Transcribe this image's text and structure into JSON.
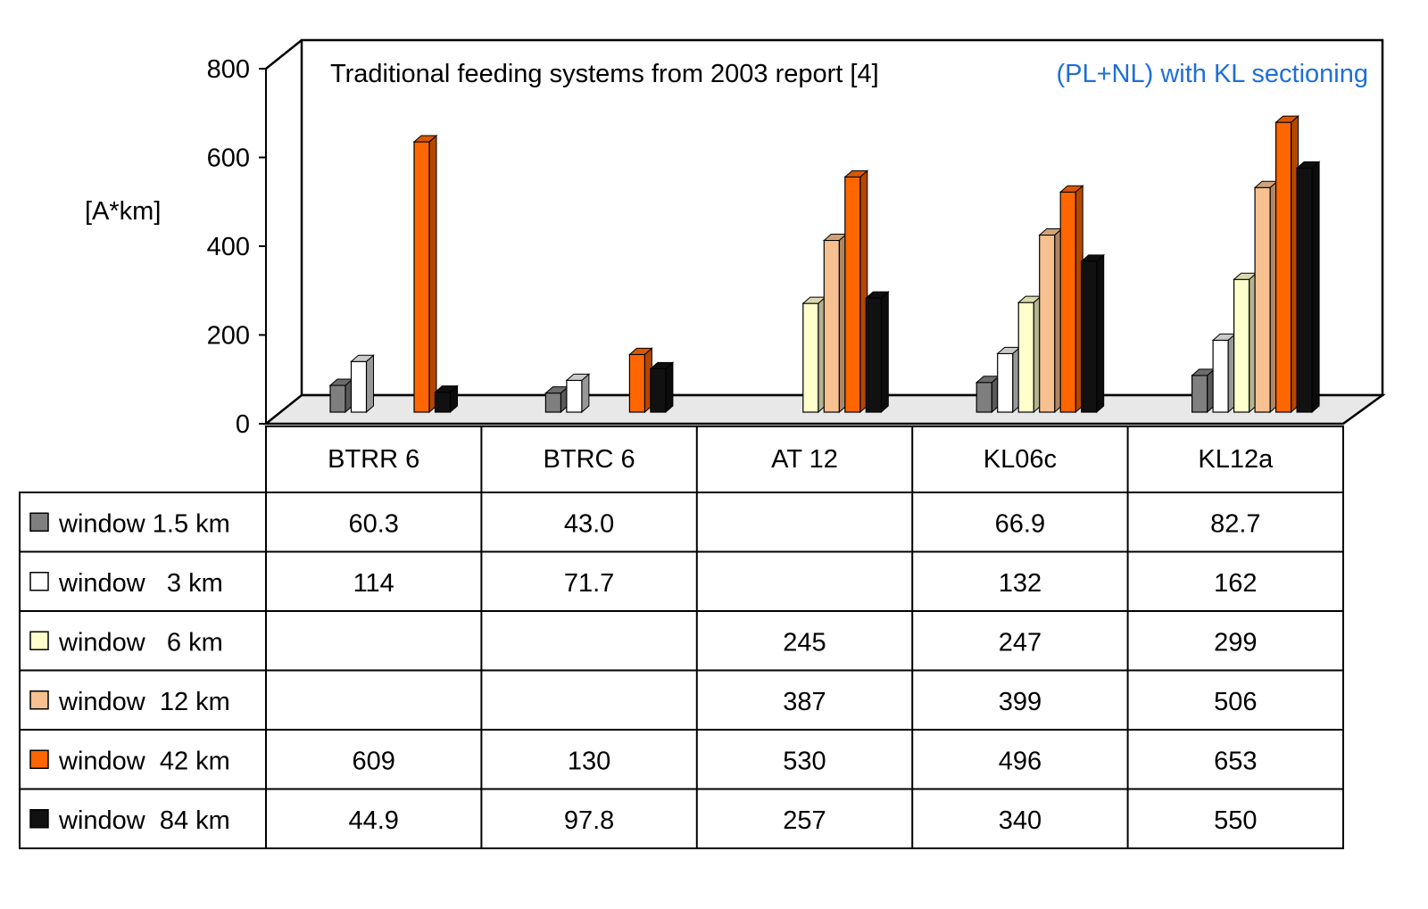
{
  "chart_data": {
    "type": "bar",
    "title": "Traditional feeding systems  from  2003 report [4]",
    "subtitle": "(PL+NL) with KL  sectioning",
    "ylabel": "[A*km]",
    "xlabel": "",
    "ylim": [
      0,
      800
    ],
    "yticks": [
      "0",
      "200",
      "400",
      "600",
      "800"
    ],
    "grid": false,
    "legend": "data-table-left",
    "categories": [
      "BTRR 6",
      "BTRC 6",
      "AT 12",
      "KL06c",
      "KL12a"
    ],
    "series": [
      {
        "name": "window 1.5 km",
        "values": [
          60.3,
          43.0,
          null,
          66.9,
          82.7
        ],
        "labels": [
          "60.3",
          "43.0",
          "",
          "66.9",
          "82.7"
        ]
      },
      {
        "name": "window   3 km",
        "values": [
          114,
          71.7,
          null,
          132,
          162
        ],
        "labels": [
          "114",
          "71.7",
          "",
          "132",
          "162"
        ]
      },
      {
        "name": "window   6 km",
        "values": [
          null,
          null,
          245,
          247,
          299
        ],
        "labels": [
          "",
          "",
          "245",
          "247",
          "299"
        ]
      },
      {
        "name": "window  12 km",
        "values": [
          null,
          null,
          387,
          399,
          506
        ],
        "labels": [
          "",
          "",
          "387",
          "399",
          "506"
        ]
      },
      {
        "name": "window  42 km",
        "values": [
          609,
          130,
          530,
          496,
          653
        ],
        "labels": [
          "609",
          "130",
          "530",
          "496",
          "653"
        ]
      },
      {
        "name": "window  84 km",
        "values": [
          44.9,
          97.8,
          257,
          340,
          550
        ],
        "labels": [
          "44.9",
          "97.8",
          "257",
          "340",
          "550"
        ]
      }
    ],
    "series_colors": [
      "#7f7f7f",
      "#ffffff",
      "#ffffcc",
      "#f7c090",
      "#ff6600",
      "#111111"
    ],
    "subtitle_color": "#1f6fd6"
  }
}
